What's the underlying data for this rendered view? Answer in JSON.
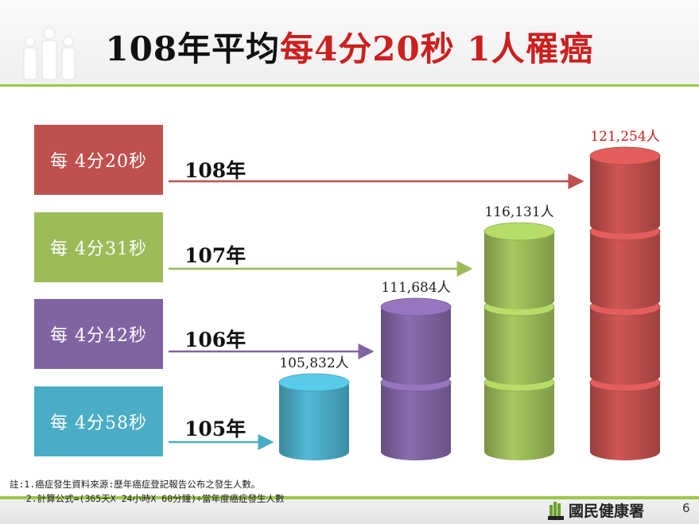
{
  "title": {
    "prefix": "108年平均",
    "highlight": "每4分20秒 1人罹癌"
  },
  "rows": [
    {
      "box": "每 4分20秒",
      "year": "108年",
      "color": "#c0504d"
    },
    {
      "box": "每 4分31秒",
      "year": "107年",
      "color": "#9bbb59"
    },
    {
      "box": "每 4分42秒",
      "year": "106年",
      "color": "#8064a2"
    },
    {
      "box": "每 4分58秒",
      "year": "105年",
      "color": "#4bacc6"
    }
  ],
  "chart_data": {
    "type": "bar",
    "categories": [
      "105年",
      "106年",
      "107年",
      "108年"
    ],
    "values": [
      105832,
      111684,
      116131,
      121254
    ],
    "value_labels": [
      "105,832人",
      "111,684人",
      "116,131人",
      "121,254人"
    ],
    "colors": [
      "#4bacc6",
      "#8064a2",
      "#9bbb59",
      "#c0504d"
    ],
    "stacks": [
      1,
      2,
      3,
      4
    ],
    "value_label_colors": [
      "#222222",
      "#222222",
      "#222222",
      "#cc1f1f"
    ]
  },
  "footer": {
    "note1": "註:1.癌症發生資料來源:歷年癌症登記報告公布之發生人數。",
    "note2": "   2.計算公式=(365天X 24小時X 60分鐘)÷當年度癌症發生人數",
    "org": "國民健康署",
    "page": "6"
  }
}
